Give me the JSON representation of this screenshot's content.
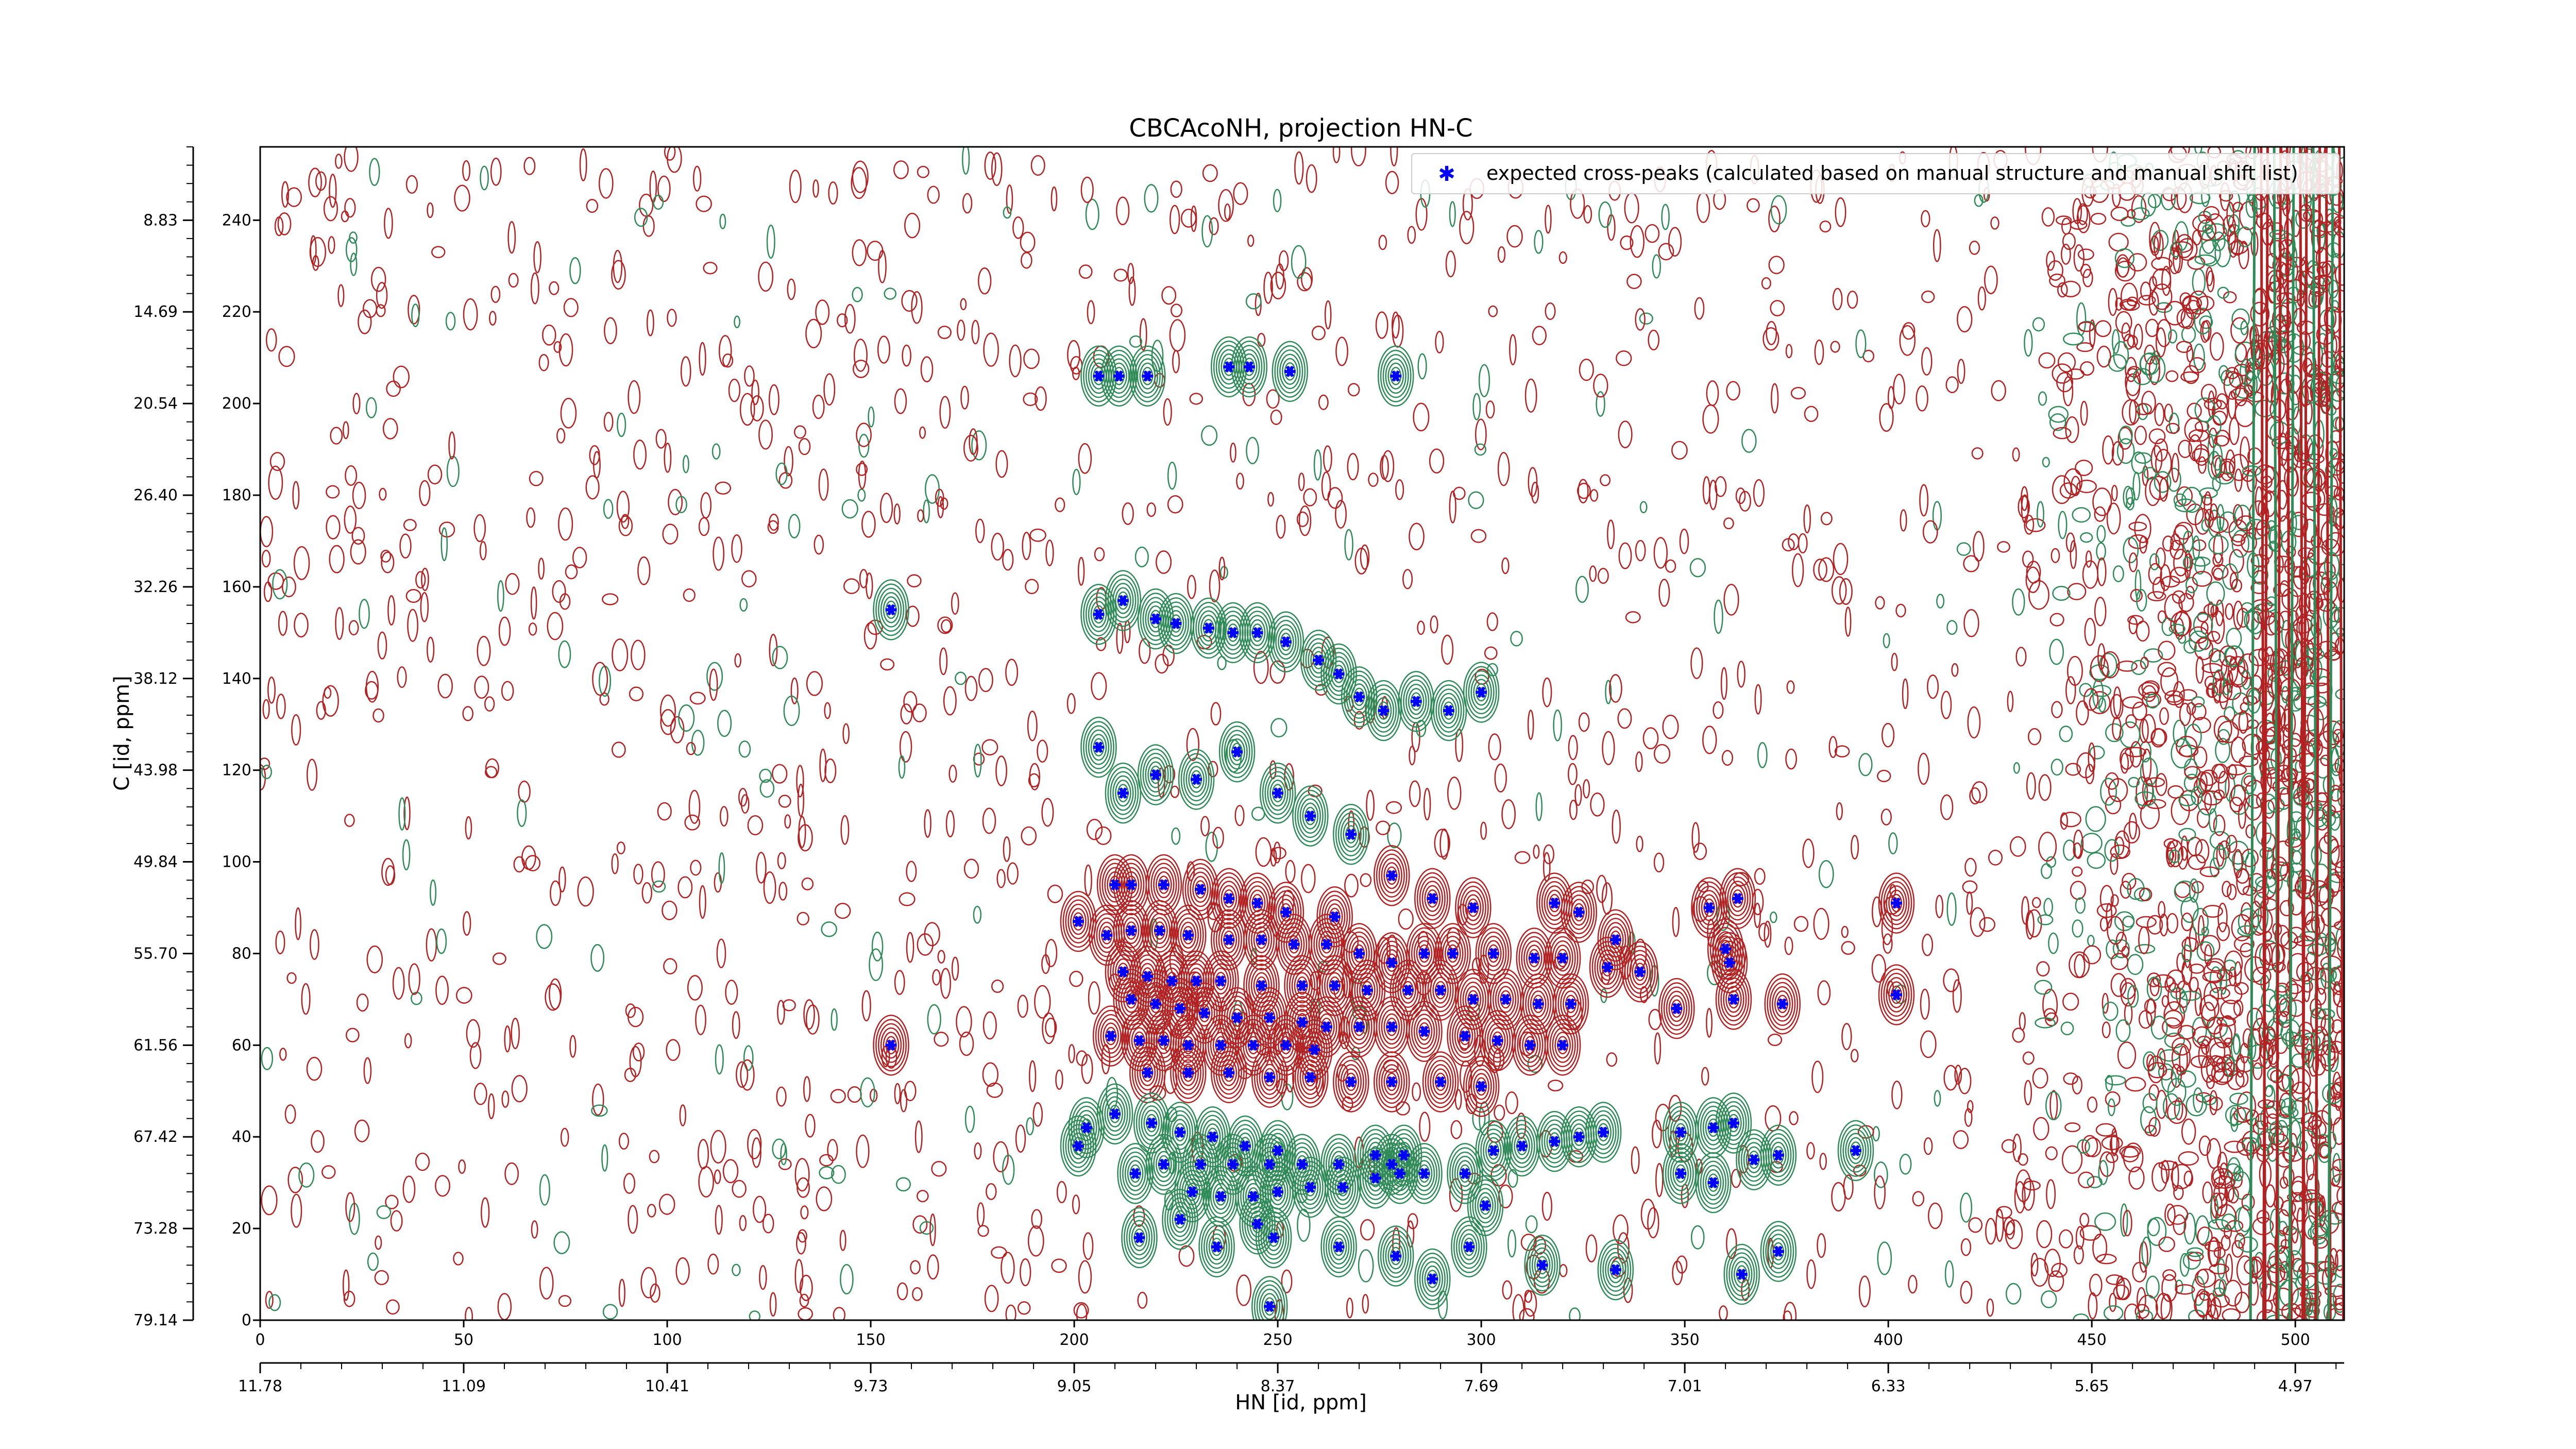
{
  "chart_data": {
    "type": "contour",
    "title": "CBCAcoNH, projection HN-C",
    "xlabel": "HN [id, ppm]",
    "ylabel": "C [id, ppm]",
    "x_index_range": [
      0,
      512
    ],
    "y_index_range": [
      0,
      256
    ],
    "x_index_ticks": [
      "0",
      "50",
      "100",
      "150",
      "200",
      "250",
      "300",
      "350",
      "400",
      "450",
      "500"
    ],
    "x_ppm_ticks": [
      "11.78",
      "11.09",
      "10.41",
      "9.73",
      "9.05",
      "8.37",
      "7.69",
      "7.01",
      "6.33",
      "5.65",
      "4.97"
    ],
    "y_index_ticks": [
      "0",
      "20",
      "40",
      "60",
      "80",
      "100",
      "120",
      "140",
      "160",
      "180",
      "200",
      "220",
      "240"
    ],
    "y_ppm_ticks": [
      "79.14",
      "73.28",
      "67.42",
      "61.56",
      "55.70",
      "49.84",
      "43.98",
      "38.12",
      "32.26",
      "26.40",
      "20.54",
      "14.69",
      "8.83"
    ],
    "legend": {
      "label": "expected cross-peaks (calculated based on manual structure and manual shift list)",
      "marker": "blue-star",
      "placement": "upper right"
    },
    "colors": {
      "positive_contour": "#2e8b57",
      "negative_contour": "#b22222",
      "marker": "#0000ff"
    },
    "expected_peaks": [
      [
        155,
        155
      ],
      [
        155,
        60
      ],
      [
        206,
        206
      ],
      [
        211,
        206
      ],
      [
        218,
        206
      ],
      [
        238,
        208
      ],
      [
        243,
        208
      ],
      [
        253,
        207
      ],
      [
        279,
        206
      ],
      [
        206,
        154
      ],
      [
        212,
        157
      ],
      [
        220,
        153
      ],
      [
        225,
        152
      ],
      [
        233,
        151
      ],
      [
        239,
        150
      ],
      [
        245,
        150
      ],
      [
        252,
        148
      ],
      [
        260,
        144
      ],
      [
        265,
        141
      ],
      [
        270,
        136
      ],
      [
        276,
        133
      ],
      [
        284,
        135
      ],
      [
        292,
        133
      ],
      [
        300,
        137
      ],
      [
        206,
        125
      ],
      [
        212,
        115
      ],
      [
        220,
        119
      ],
      [
        230,
        118
      ],
      [
        240,
        124
      ],
      [
        250,
        115
      ],
      [
        258,
        110
      ],
      [
        268,
        106
      ],
      [
        278,
        97
      ],
      [
        288,
        92
      ],
      [
        298,
        90
      ],
      [
        318,
        91
      ],
      [
        324,
        89
      ],
      [
        333,
        83
      ],
      [
        356,
        90
      ],
      [
        363,
        92
      ],
      [
        210,
        95
      ],
      [
        214,
        95
      ],
      [
        222,
        95
      ],
      [
        231,
        94
      ],
      [
        238,
        92
      ],
      [
        245,
        91
      ],
      [
        252,
        89
      ],
      [
        264,
        88
      ],
      [
        201,
        87
      ],
      [
        208,
        84
      ],
      [
        214,
        85
      ],
      [
        221,
        85
      ],
      [
        228,
        84
      ],
      [
        238,
        83
      ],
      [
        246,
        83
      ],
      [
        254,
        82
      ],
      [
        262,
        82
      ],
      [
        270,
        80
      ],
      [
        278,
        78
      ],
      [
        286,
        80
      ],
      [
        293,
        80
      ],
      [
        303,
        80
      ],
      [
        313,
        79
      ],
      [
        320,
        79
      ],
      [
        331,
        77
      ],
      [
        339,
        76
      ],
      [
        212,
        76
      ],
      [
        218,
        75
      ],
      [
        224,
        74
      ],
      [
        230,
        74
      ],
      [
        236,
        74
      ],
      [
        246,
        73
      ],
      [
        256,
        73
      ],
      [
        264,
        73
      ],
      [
        272,
        72
      ],
      [
        282,
        72
      ],
      [
        290,
        72
      ],
      [
        298,
        70
      ],
      [
        306,
        70
      ],
      [
        314,
        69
      ],
      [
        322,
        69
      ],
      [
        214,
        70
      ],
      [
        220,
        69
      ],
      [
        226,
        68
      ],
      [
        232,
        67
      ],
      [
        240,
        66
      ],
      [
        248,
        66
      ],
      [
        256,
        65
      ],
      [
        262,
        64
      ],
      [
        270,
        64
      ],
      [
        278,
        64
      ],
      [
        286,
        63
      ],
      [
        296,
        62
      ],
      [
        304,
        61
      ],
      [
        312,
        60
      ],
      [
        320,
        60
      ],
      [
        209,
        62
      ],
      [
        216,
        61
      ],
      [
        222,
        61
      ],
      [
        228,
        60
      ],
      [
        236,
        60
      ],
      [
        244,
        60
      ],
      [
        252,
        60
      ],
      [
        259,
        59
      ],
      [
        218,
        54
      ],
      [
        228,
        54
      ],
      [
        238,
        54
      ],
      [
        248,
        53
      ],
      [
        258,
        53
      ],
      [
        268,
        52
      ],
      [
        278,
        52
      ],
      [
        290,
        52
      ],
      [
        300,
        51
      ],
      [
        210,
        45
      ],
      [
        219,
        43
      ],
      [
        226,
        41
      ],
      [
        234,
        40
      ],
      [
        242,
        38
      ],
      [
        250,
        37
      ],
      [
        274,
        36
      ],
      [
        281,
        36
      ],
      [
        222,
        34
      ],
      [
        231,
        34
      ],
      [
        239,
        34
      ],
      [
        248,
        34
      ],
      [
        256,
        34
      ],
      [
        265,
        34
      ],
      [
        278,
        34
      ],
      [
        229,
        28
      ],
      [
        236,
        27
      ],
      [
        244,
        27
      ],
      [
        250,
        28
      ],
      [
        258,
        29
      ],
      [
        266,
        29
      ],
      [
        274,
        31
      ],
      [
        280,
        32
      ],
      [
        286,
        32
      ],
      [
        296,
        32
      ],
      [
        301,
        25
      ],
      [
        303,
        37
      ],
      [
        310,
        38
      ],
      [
        318,
        39
      ],
      [
        324,
        40
      ],
      [
        330,
        41
      ],
      [
        349,
        41
      ],
      [
        357,
        42
      ],
      [
        362,
        43
      ],
      [
        349,
        32
      ],
      [
        357,
        30
      ],
      [
        367,
        35
      ],
      [
        373,
        36
      ],
      [
        392,
        37
      ],
      [
        402,
        91
      ],
      [
        402,
        71
      ],
      [
        360,
        81
      ],
      [
        361,
        78
      ],
      [
        348,
        68
      ],
      [
        362,
        70
      ],
      [
        374,
        69
      ],
      [
        216,
        18
      ],
      [
        235,
        16
      ],
      [
        249,
        18
      ],
      [
        265,
        16
      ],
      [
        279,
        14
      ],
      [
        297,
        16
      ],
      [
        315,
        12
      ],
      [
        333,
        11
      ],
      [
        364,
        10
      ],
      [
        373,
        15
      ],
      [
        201,
        38
      ],
      [
        203,
        42
      ],
      [
        215,
        32
      ],
      [
        226,
        22
      ],
      [
        245,
        21
      ],
      [
        288,
        9
      ],
      [
        248,
        3
      ]
    ]
  }
}
